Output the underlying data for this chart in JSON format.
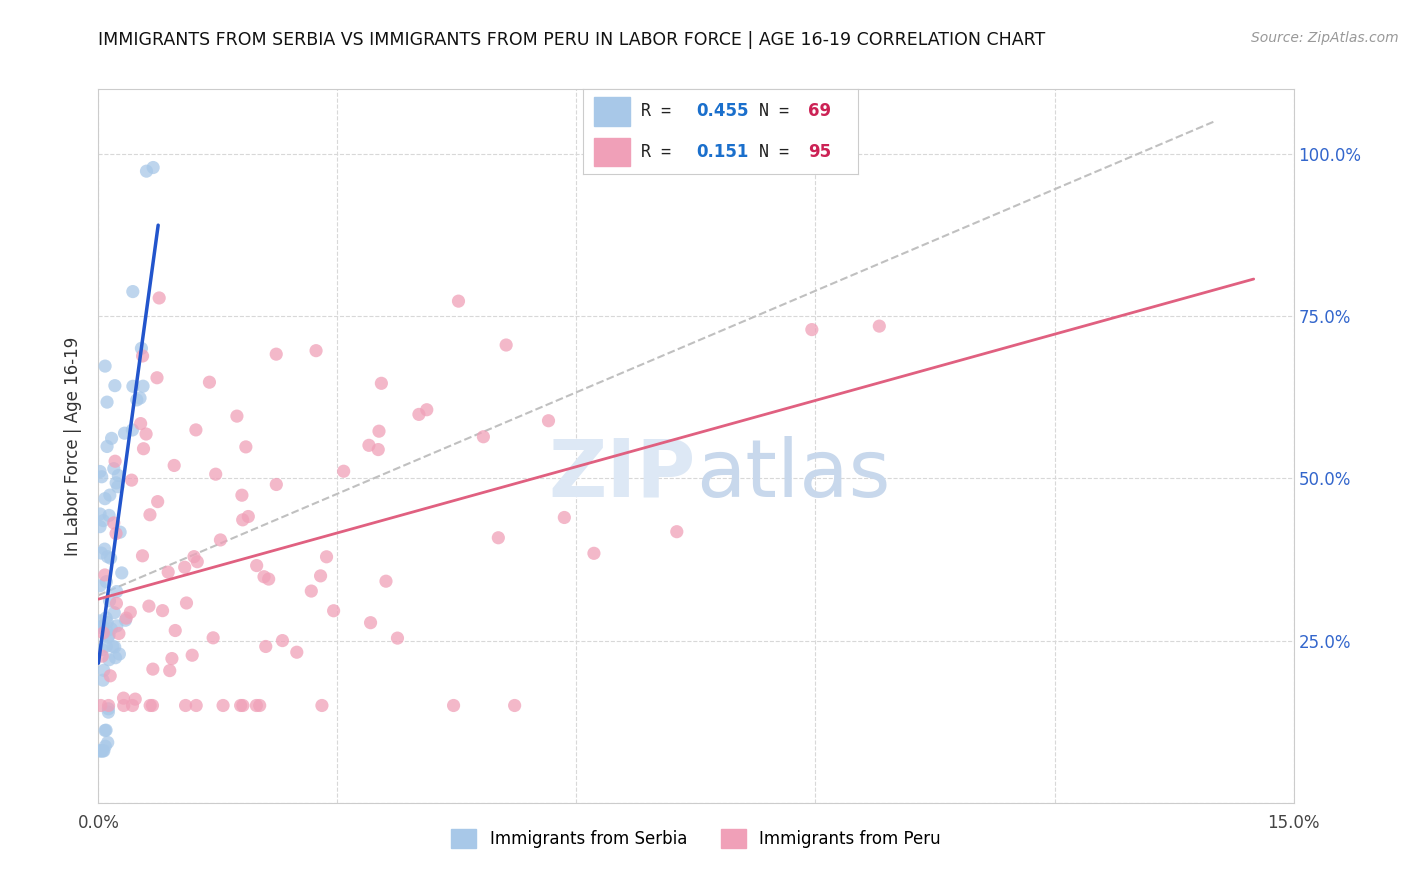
{
  "title": "IMMIGRANTS FROM SERBIA VS IMMIGRANTS FROM PERU IN LABOR FORCE | AGE 16-19 CORRELATION CHART",
  "source": "Source: ZipAtlas.com",
  "ylabel": "In Labor Force | Age 16-19",
  "xlim": [
    0.0,
    0.15
  ],
  "ylim": [
    0.0,
    1.1
  ],
  "serbia_color": "#a8c8e8",
  "peru_color": "#f0a0b8",
  "serbia_R": 0.455,
  "serbia_N": 69,
  "peru_R": 0.151,
  "peru_N": 95,
  "legend_R_color": "#1a6fcc",
  "legend_N_color": "#cc2255",
  "watermark_color": "#dde8f5",
  "serbia_line_color": "#2255cc",
  "peru_line_color": "#e06080",
  "dashed_line_color": "#c0c0c0",
  "grid_color": "#d8d8d8",
  "right_tick_color": "#3366cc"
}
